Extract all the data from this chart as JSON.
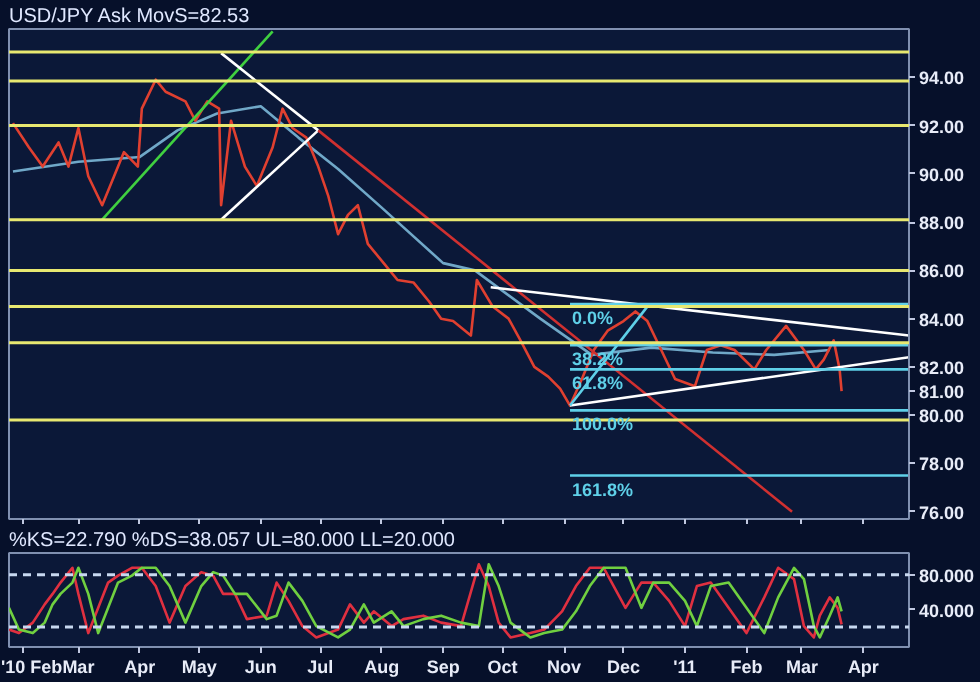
{
  "chart_data": [
    {
      "type": "line",
      "title": "USD/JPY Ask MovS=82.53",
      "xlim": [
        "2010-01-25",
        "2011-04-24"
      ],
      "ylim": [
        75.7,
        96
      ],
      "yticks": [
        {
          "value": 76,
          "label": "76.00"
        },
        {
          "value": 78,
          "label": "78.00"
        },
        {
          "value": 80,
          "label": "80.00"
        },
        {
          "value": 81,
          "label": "81.00"
        },
        {
          "value": 82,
          "label": "82.00"
        },
        {
          "value": 84,
          "label": "84.00"
        },
        {
          "value": 86,
          "label": "86.00"
        },
        {
          "value": 88,
          "label": "88.00"
        },
        {
          "value": 90,
          "label": "90.00"
        },
        {
          "value": 92,
          "label": "92.00"
        },
        {
          "value": 94,
          "label": "94.00"
        }
      ],
      "xticks": [
        {
          "value": "2010-02-01",
          "label": null
        },
        {
          "value": "2010-03-01",
          "label": null
        },
        {
          "value": "2010-04-01",
          "label": null
        },
        {
          "value": "2010-05-01",
          "label": null
        },
        {
          "value": "2010-06-01",
          "label": null
        },
        {
          "value": "2010-07-01",
          "label": null
        },
        {
          "value": "2010-08-01",
          "label": null
        },
        {
          "value": "2010-09-01",
          "label": null
        },
        {
          "value": "2010-10-01",
          "label": null
        },
        {
          "value": "2010-11-01",
          "label": null
        },
        {
          "value": "2010-12-01",
          "label": null
        },
        {
          "value": "2011-01-01",
          "label": null
        },
        {
          "value": "2011-02-01",
          "label": null
        },
        {
          "value": "2011-03-01",
          "label": null
        },
        {
          "value": "2011-04-01",
          "label": null
        }
      ],
      "tick_labels": "y",
      "grid": false,
      "ref_lines": [
        {
          "axis": "y",
          "value": 95.05,
          "color": "#e8e870"
        },
        {
          "axis": "y",
          "value": 93.85,
          "color": "#e8e870"
        },
        {
          "axis": "y",
          "value": 92.0,
          "color": "#e8e870"
        },
        {
          "axis": "y",
          "value": 88.1,
          "color": "#e8e870"
        },
        {
          "axis": "y",
          "value": 86.0,
          "color": "#e8e870"
        },
        {
          "axis": "y",
          "value": 84.5,
          "color": "#e8e870"
        },
        {
          "axis": "y",
          "value": 83.0,
          "color": "#e8e870"
        },
        {
          "axis": "y",
          "value": 79.8,
          "color": "#e8e870"
        }
      ],
      "series": [
        {
          "type": "line",
          "color": "#70a8c8",
          "x": [
            "2010-01-27",
            "2010-03-01",
            "2010-04-01",
            "2010-04-20",
            "2010-05-10",
            "2010-06-01",
            "2010-06-20",
            "2010-07-10",
            "2010-08-01",
            "2010-09-01",
            "2010-09-17",
            "2010-10-20",
            "2010-11-15",
            "2010-12-15",
            "2011-01-15",
            "2011-02-15",
            "2011-03-15"
          ],
          "values": [
            90.1,
            90.5,
            90.7,
            91.8,
            92.5,
            92.8,
            91.5,
            90.2,
            88.6,
            86.3,
            86.0,
            84.0,
            82.5,
            82.8,
            82.6,
            82.5,
            82.7
          ]
        },
        {
          "type": "line",
          "color": "#e04030",
          "x": [
            "2010-01-27",
            "2010-02-04",
            "2010-02-11",
            "2010-02-19",
            "2010-02-24",
            "2010-03-01",
            "2010-03-06",
            "2010-03-13",
            "2010-03-19",
            "2010-03-24",
            "2010-03-31",
            "2010-04-02",
            "2010-04-09",
            "2010-04-14",
            "2010-04-24",
            "2010-04-29",
            "2010-05-05",
            "2010-05-11",
            "2010-05-12",
            "2010-05-17",
            "2010-05-24",
            "2010-05-30",
            "2010-06-07",
            "2010-06-12",
            "2010-06-17",
            "2010-06-24",
            "2010-06-30",
            "2010-07-05",
            "2010-07-10",
            "2010-07-15",
            "2010-07-20",
            "2010-07-25",
            "2010-08-02",
            "2010-08-09",
            "2010-08-17",
            "2010-08-25",
            "2010-08-31",
            "2010-09-06",
            "2010-09-15",
            "2010-09-18",
            "2010-09-26",
            "2010-10-04",
            "2010-10-10",
            "2010-10-17",
            "2010-10-24",
            "2010-10-30",
            "2010-11-04",
            "2010-11-10",
            "2010-11-16",
            "2010-11-23",
            "2010-12-01",
            "2010-12-07",
            "2010-12-13",
            "2010-12-20",
            "2010-12-27",
            "2011-01-06",
            "2011-01-12",
            "2011-01-19",
            "2011-01-26",
            "2011-02-05",
            "2011-02-11",
            "2011-02-21",
            "2011-03-02",
            "2011-03-08",
            "2011-03-12",
            "2011-03-17",
            "2011-03-20",
            "2011-03-21"
          ],
          "values": [
            92.1,
            91.1,
            90.3,
            91.3,
            90.3,
            91.9,
            89.9,
            88.7,
            89.9,
            90.9,
            90.3,
            92.7,
            93.9,
            93.4,
            93.0,
            92.2,
            93.0,
            92.7,
            88.7,
            92.2,
            90.3,
            89.5,
            91.1,
            92.7,
            91.9,
            91.5,
            90.3,
            89.1,
            87.5,
            88.3,
            88.7,
            87.1,
            86.3,
            85.6,
            85.5,
            84.7,
            84.0,
            83.9,
            83.3,
            85.6,
            84.5,
            84.0,
            83.1,
            82.0,
            81.6,
            81.1,
            80.4,
            81.5,
            82.7,
            83.5,
            83.9,
            84.3,
            83.9,
            82.7,
            81.5,
            81.2,
            82.7,
            82.9,
            82.7,
            81.9,
            82.7,
            83.7,
            82.7,
            81.9,
            82.3,
            83.1,
            81.9,
            81.0
          ]
        },
        {
          "type": "line",
          "color": "#40d040",
          "x": [
            "2010-03-13",
            "2010-06-07"
          ],
          "values": [
            88.1,
            95.9
          ]
        },
        {
          "type": "line",
          "color": "#ffffff",
          "x": [
            "2010-05-12",
            "2010-06-30"
          ],
          "values": [
            88.1,
            91.8
          ]
        },
        {
          "type": "line",
          "color": "#ffffff",
          "x": [
            "2010-05-12",
            "2010-06-30"
          ],
          "values": [
            95.0,
            91.8
          ]
        },
        {
          "type": "line",
          "color": "#d03030",
          "x": [
            "2010-06-30",
            "2011-02-24"
          ],
          "values": [
            91.8,
            76.0
          ]
        },
        {
          "type": "line",
          "color": "#ffffff",
          "x": [
            "2010-09-25",
            "2011-04-24"
          ],
          "values": [
            85.3,
            83.3
          ]
        },
        {
          "type": "line",
          "color": "#ffffff",
          "x": [
            "2010-11-04",
            "2011-04-24"
          ],
          "values": [
            80.4,
            82.4
          ]
        },
        {
          "type": "line",
          "color": "#5fd0e8",
          "x": [
            "2010-11-04",
            "2010-12-13"
          ],
          "values": [
            80.4,
            84.5
          ]
        },
        {
          "type": "line",
          "name": "0.0%",
          "color": "#5fd0e8",
          "x": [
            "2010-11-04",
            "2011-04-24"
          ],
          "values": [
            84.6,
            84.6
          ]
        },
        {
          "type": "line",
          "name": "38.2%",
          "color": "#5fd0e8",
          "x": [
            "2010-11-04",
            "2011-04-24"
          ],
          "values": [
            82.9,
            82.9
          ]
        },
        {
          "type": "line",
          "name": "61.8%",
          "color": "#5fd0e8",
          "x": [
            "2010-11-04",
            "2011-04-24"
          ],
          "values": [
            81.9,
            81.9
          ]
        },
        {
          "type": "line",
          "name": "100.0%",
          "color": "#5fd0e8",
          "x": [
            "2010-11-04",
            "2011-04-24"
          ],
          "values": [
            80.2,
            80.2
          ]
        },
        {
          "type": "line",
          "name": "161.8%",
          "color": "#5fd0e8",
          "x": [
            "2010-11-04",
            "2011-04-24"
          ],
          "values": [
            77.5,
            77.5
          ]
        }
      ]
    },
    {
      "type": "line",
      "title": "%KS=22.790 %DS=38.057 UL=80.000 LL=20.000",
      "xlim": [
        "2010-01-25",
        "2011-04-24"
      ],
      "ylim": [
        -3,
        105
      ],
      "yticks": [
        {
          "value": 40,
          "label": "40.000"
        },
        {
          "value": 80,
          "label": "80.000"
        }
      ],
      "xticks": [
        {
          "value": "2010-02-01",
          "label": "'10 Feb"
        },
        {
          "value": "2010-03-01",
          "label": "Mar"
        },
        {
          "value": "2010-04-01",
          "label": "Apr"
        },
        {
          "value": "2010-05-01",
          "label": "May"
        },
        {
          "value": "2010-06-01",
          "label": "Jun"
        },
        {
          "value": "2010-07-01",
          "label": "Jul"
        },
        {
          "value": "2010-08-01",
          "label": "Aug"
        },
        {
          "value": "2010-09-01",
          "label": "Sep"
        },
        {
          "value": "2010-10-01",
          "label": "Oct"
        },
        {
          "value": "2010-11-01",
          "label": "Nov"
        },
        {
          "value": "2010-12-01",
          "label": "Dec"
        },
        {
          "value": "2011-01-01",
          "label": "'11"
        },
        {
          "value": "2011-02-01",
          "label": "Feb"
        },
        {
          "value": "2011-03-01",
          "label": "Mar"
        },
        {
          "value": "2011-04-01",
          "label": "Apr"
        }
      ],
      "grid": false,
      "ref_lines": [
        {
          "axis": "y",
          "value": 80,
          "color": "#c8d8f0",
          "line_style": "dashed"
        },
        {
          "axis": "y",
          "value": 20,
          "color": "#c8d8f0",
          "line_style": "dashed"
        }
      ],
      "x": [
        "2010-01-25",
        "2010-01-30",
        "2010-02-06",
        "2010-02-12",
        "2010-02-16",
        "2010-02-20",
        "2010-02-26",
        "2010-03-01",
        "2010-03-06",
        "2010-03-11",
        "2010-03-16",
        "2010-03-21",
        "2010-03-28",
        "2010-04-02",
        "2010-04-09",
        "2010-04-16",
        "2010-04-24",
        "2010-05-02",
        "2010-05-08",
        "2010-05-13",
        "2010-05-19",
        "2010-05-25",
        "2010-06-04",
        "2010-06-09",
        "2010-06-15",
        "2010-06-22",
        "2010-06-29",
        "2010-07-10",
        "2010-07-16",
        "2010-07-23",
        "2010-07-28",
        "2010-08-06",
        "2010-08-12",
        "2010-08-22",
        "2010-08-31",
        "2010-09-10",
        "2010-09-19",
        "2010-09-24",
        "2010-09-29",
        "2010-10-05",
        "2010-10-15",
        "2010-10-22",
        "2010-10-31",
        "2010-11-07",
        "2010-11-14",
        "2010-11-21",
        "2010-12-02",
        "2010-12-10",
        "2010-12-16",
        "2010-12-24",
        "2011-01-01",
        "2011-01-07",
        "2011-01-14",
        "2011-01-23",
        "2011-02-01",
        "2011-02-10",
        "2011-02-17",
        "2011-02-25",
        "2011-03-02",
        "2011-03-07",
        "2011-03-10",
        "2011-03-15",
        "2011-03-19",
        "2011-03-21"
      ],
      "series": [
        {
          "type": "line",
          "color": "#e03040",
          "values": [
            17,
            13,
            25,
            46,
            58,
            71,
            88,
            58,
            13,
            42,
            71,
            79,
            88,
            88,
            67,
            25,
            67,
            83,
            79,
            58,
            58,
            29,
            33,
            71,
            50,
            21,
            8,
            17,
            46,
            25,
            38,
            21,
            29,
            33,
            25,
            21,
            92,
            67,
            25,
            8,
            13,
            17,
            38,
            67,
            88,
            88,
            42,
            71,
            71,
            50,
            21,
            67,
            71,
            42,
            13,
            54,
            88,
            75,
            21,
            8,
            33,
            54,
            42,
            23
          ]
        },
        {
          "type": "line",
          "color": "#70d040",
          "values": [
            42,
            17,
            13,
            25,
            46,
            58,
            71,
            88,
            58,
            13,
            42,
            71,
            79,
            88,
            88,
            67,
            25,
            67,
            83,
            79,
            58,
            58,
            29,
            33,
            71,
            50,
            21,
            8,
            17,
            46,
            25,
            38,
            21,
            29,
            33,
            25,
            21,
            92,
            67,
            25,
            8,
            13,
            17,
            38,
            67,
            88,
            88,
            42,
            71,
            71,
            50,
            21,
            67,
            71,
            42,
            13,
            54,
            88,
            75,
            21,
            8,
            33,
            54,
            38
          ]
        }
      ]
    }
  ]
}
